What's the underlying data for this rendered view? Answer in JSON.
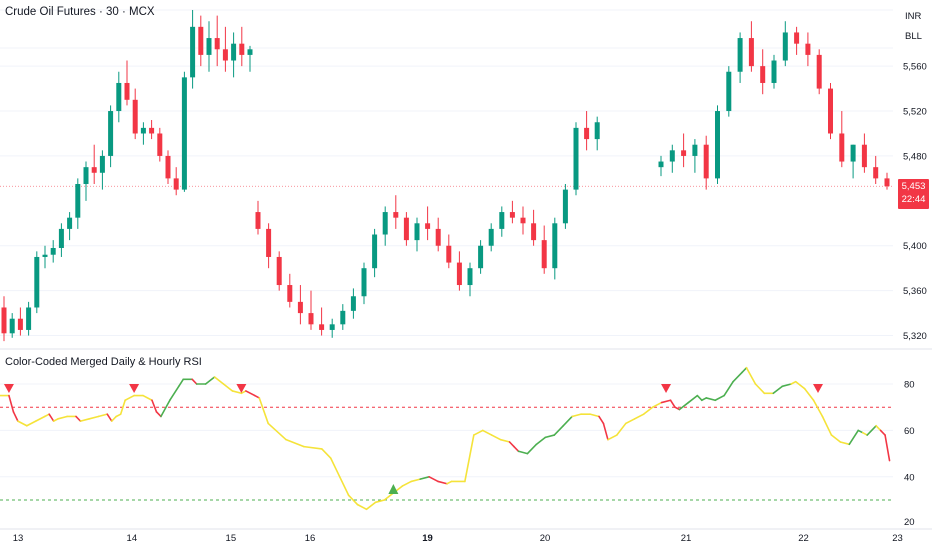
{
  "header": {
    "title": "Crude Oil Futures · 30 · MCX",
    "currency": "INR",
    "unit": "BLL"
  },
  "last_price": {
    "value": "5,453",
    "countdown": "22:44"
  },
  "indicator": {
    "title": "Color-Coded Merged Daily & Hourly RSI"
  },
  "colors": {
    "up": "#089981",
    "down": "#f23645",
    "rsi_neutral": "#f5e33a",
    "rsi_up": "#4caf50",
    "rsi_down": "#f23645",
    "overbought_line": "#f23645",
    "oversold_line": "#4caf50"
  },
  "chart_data": [
    {
      "type": "candlestick",
      "y_axis_ticks": [
        "5,320",
        "5,360",
        "5,400",
        "5,480",
        "5,520",
        "5,560"
      ],
      "ylim": [
        5300,
        5610
      ],
      "x_tick_labels": [
        {
          "label": "13",
          "x": 0.5
        },
        {
          "label": "14",
          "x": 12
        },
        {
          "label": "15",
          "x": 22
        },
        {
          "label": "16",
          "x": 26
        },
        {
          "label": "19",
          "x": 36
        },
        {
          "label": "20",
          "x": 46
        },
        {
          "label": "21",
          "x": 58
        },
        {
          "label": "22",
          "x": 68
        },
        {
          "label": "23",
          "x": 76
        }
      ],
      "last_price": 5453,
      "ohlc": [
        [
          5345,
          5355,
          5315,
          5322
        ],
        [
          5322,
          5340,
          5318,
          5335
        ],
        [
          5335,
          5345,
          5320,
          5325
        ],
        [
          5325,
          5350,
          5320,
          5345
        ],
        [
          5345,
          5395,
          5340,
          5390
        ],
        [
          5390,
          5400,
          5380,
          5392
        ],
        [
          5392,
          5405,
          5385,
          5398
        ],
        [
          5398,
          5420,
          5390,
          5415
        ],
        [
          5415,
          5430,
          5405,
          5425
        ],
        [
          5425,
          5460,
          5415,
          5455
        ],
        [
          5455,
          5475,
          5440,
          5470
        ],
        [
          5470,
          5490,
          5455,
          5465
        ],
        [
          5465,
          5485,
          5450,
          5480
        ],
        [
          5480,
          5525,
          5470,
          5520
        ],
        [
          5520,
          5555,
          5510,
          5545
        ],
        [
          5545,
          5565,
          5525,
          5530
        ],
        [
          5530,
          5540,
          5495,
          5500
        ],
        [
          5500,
          5510,
          5490,
          5505
        ],
        [
          5505,
          5512,
          5495,
          5500
        ],
        [
          5500,
          5505,
          5475,
          5480
        ],
        [
          5480,
          5485,
          5455,
          5460
        ],
        [
          5460,
          5470,
          5445,
          5450
        ],
        [
          5450,
          5555,
          5448,
          5550
        ],
        [
          5550,
          5610,
          5540,
          5595
        ],
        [
          5595,
          5605,
          5560,
          5570
        ],
        [
          5570,
          5600,
          5555,
          5585
        ],
        [
          5585,
          5605,
          5560,
          5575
        ],
        [
          5575,
          5595,
          5555,
          5565
        ],
        [
          5565,
          5590,
          5550,
          5580
        ],
        [
          5580,
          5595,
          5560,
          5570
        ],
        [
          5570,
          5578,
          5555,
          5575
        ],
        [
          5430,
          5440,
          5410,
          5415
        ],
        [
          5415,
          5420,
          5380,
          5390
        ],
        [
          5390,
          5395,
          5360,
          5365
        ],
        [
          5365,
          5375,
          5345,
          5350
        ],
        [
          5350,
          5365,
          5330,
          5340
        ],
        [
          5340,
          5360,
          5325,
          5330
        ],
        [
          5330,
          5345,
          5320,
          5325
        ],
        [
          5325,
          5335,
          5318,
          5330
        ],
        [
          5330,
          5348,
          5325,
          5342
        ],
        [
          5342,
          5362,
          5335,
          5355
        ],
        [
          5355,
          5385,
          5348,
          5380
        ],
        [
          5380,
          5415,
          5372,
          5410
        ],
        [
          5410,
          5435,
          5400,
          5430
        ],
        [
          5430,
          5445,
          5415,
          5425
        ],
        [
          5425,
          5430,
          5400,
          5405
        ],
        [
          5405,
          5425,
          5395,
          5420
        ],
        [
          5420,
          5435,
          5405,
          5415
        ],
        [
          5415,
          5425,
          5395,
          5400
        ],
        [
          5400,
          5410,
          5380,
          5385
        ],
        [
          5385,
          5395,
          5360,
          5365
        ],
        [
          5365,
          5385,
          5355,
          5380
        ],
        [
          5380,
          5405,
          5375,
          5400
        ],
        [
          5400,
          5420,
          5395,
          5415
        ],
        [
          5415,
          5435,
          5408,
          5430
        ],
        [
          5430,
          5440,
          5420,
          5425
        ],
        [
          5425,
          5435,
          5410,
          5420
        ],
        [
          5420,
          5432,
          5400,
          5405
        ],
        [
          5405,
          5418,
          5375,
          5380
        ],
        [
          5380,
          5425,
          5370,
          5420
        ],
        [
          5420,
          5455,
          5415,
          5450
        ],
        [
          5450,
          5510,
          5445,
          5505
        ],
        [
          5505,
          5520,
          5485,
          5495
        ],
        [
          5495,
          5515,
          5485,
          5510
        ],
        [
          5470,
          5480,
          5462,
          5475
        ],
        [
          5475,
          5490,
          5465,
          5485
        ],
        [
          5485,
          5500,
          5470,
          5480
        ],
        [
          5480,
          5495,
          5465,
          5490
        ],
        [
          5490,
          5498,
          5450,
          5460
        ],
        [
          5460,
          5525,
          5455,
          5520
        ],
        [
          5520,
          5560,
          5515,
          5555
        ],
        [
          5555,
          5590,
          5545,
          5585
        ],
        [
          5585,
          5600,
          5555,
          5560
        ],
        [
          5560,
          5575,
          5535,
          5545
        ],
        [
          5545,
          5570,
          5540,
          5565
        ],
        [
          5565,
          5600,
          5560,
          5590
        ],
        [
          5590,
          5595,
          5570,
          5580
        ],
        [
          5580,
          5590,
          5560,
          5570
        ],
        [
          5570,
          5575,
          5535,
          5540
        ],
        [
          5540,
          5545,
          5495,
          5500
        ],
        [
          5500,
          5520,
          5470,
          5475
        ],
        [
          5475,
          5490,
          5460,
          5490
        ],
        [
          5490,
          5500,
          5465,
          5470
        ],
        [
          5470,
          5480,
          5455,
          5460
        ],
        [
          5460,
          5465,
          5450,
          5453
        ]
      ]
    },
    {
      "type": "line",
      "name": "",
      "y_axis_ticks": [
        "40",
        "60",
        "80"
      ],
      "ylim": [
        20,
        90
      ],
      "overbought": 70,
      "oversold": 30,
      "series": [
        [
          0,
          75,
          "n"
        ],
        [
          2,
          75,
          "n"
        ],
        [
          3,
          68,
          "d"
        ],
        [
          4,
          64,
          "d"
        ],
        [
          6,
          62,
          "n"
        ],
        [
          8,
          64,
          "n"
        ],
        [
          10,
          66,
          "n"
        ],
        [
          11,
          67,
          "n"
        ],
        [
          12,
          64,
          "d"
        ],
        [
          13,
          65,
          "n"
        ],
        [
          15,
          66,
          "n"
        ],
        [
          17,
          66,
          "n"
        ],
        [
          18,
          64,
          "d"
        ],
        [
          20,
          65,
          "n"
        ],
        [
          22,
          66,
          "n"
        ],
        [
          24,
          67,
          "n"
        ],
        [
          25,
          64,
          "d"
        ],
        [
          26,
          66,
          "n"
        ],
        [
          27,
          67,
          "n"
        ],
        [
          28,
          73,
          "n"
        ],
        [
          30,
          75,
          "n"
        ],
        [
          32,
          75,
          "n"
        ],
        [
          34,
          73,
          "n"
        ],
        [
          35,
          68,
          "d"
        ],
        [
          36,
          66,
          "d"
        ],
        [
          38,
          73,
          "u"
        ],
        [
          40,
          79,
          "u"
        ],
        [
          41,
          82,
          "u"
        ],
        [
          43,
          82,
          "u"
        ],
        [
          44,
          80,
          "d"
        ],
        [
          46,
          80,
          "u"
        ],
        [
          48,
          83,
          "u"
        ],
        [
          50,
          80,
          "n"
        ],
        [
          52,
          77,
          "n"
        ],
        [
          54,
          76,
          "n"
        ],
        [
          55,
          77,
          "n"
        ],
        [
          57,
          75,
          "d"
        ],
        [
          58,
          74,
          "d"
        ],
        [
          60,
          63,
          "n"
        ],
        [
          64,
          56,
          "n"
        ],
        [
          68,
          53,
          "n"
        ],
        [
          72,
          52,
          "n"
        ],
        [
          74,
          48,
          "n"
        ],
        [
          76,
          40,
          "n"
        ],
        [
          78,
          32,
          "n"
        ],
        [
          80,
          28,
          "n"
        ],
        [
          82,
          26,
          "n"
        ],
        [
          84,
          29,
          "n"
        ],
        [
          86,
          30,
          "n"
        ],
        [
          88,
          33,
          "n"
        ],
        [
          90,
          36,
          "n"
        ],
        [
          92,
          38,
          "n"
        ],
        [
          94,
          39,
          "n"
        ],
        [
          96,
          40,
          "u"
        ],
        [
          98,
          38,
          "d"
        ],
        [
          100,
          37,
          "d"
        ],
        [
          101,
          38,
          "n"
        ],
        [
          104,
          38,
          "n"
        ],
        [
          106,
          58,
          "n"
        ],
        [
          108,
          60,
          "n"
        ],
        [
          110,
          58,
          "n"
        ],
        [
          112,
          56,
          "n"
        ],
        [
          114,
          55,
          "n"
        ],
        [
          115,
          53,
          "d"
        ],
        [
          116,
          51,
          "d"
        ],
        [
          118,
          50,
          "u"
        ],
        [
          120,
          54,
          "u"
        ],
        [
          122,
          57,
          "u"
        ],
        [
          124,
          58,
          "u"
        ],
        [
          126,
          62,
          "u"
        ],
        [
          128,
          66,
          "u"
        ],
        [
          130,
          67,
          "n"
        ],
        [
          132,
          67,
          "n"
        ],
        [
          134,
          66,
          "n"
        ],
        [
          135,
          63,
          "d"
        ],
        [
          136,
          56,
          "d"
        ],
        [
          138,
          58,
          "n"
        ],
        [
          140,
          63,
          "n"
        ],
        [
          142,
          65,
          "n"
        ],
        [
          144,
          67,
          "n"
        ],
        [
          146,
          70,
          "n"
        ],
        [
          148,
          72,
          "n"
        ],
        [
          150,
          73,
          "d"
        ],
        [
          151,
          70,
          "d"
        ],
        [
          152,
          69,
          "d"
        ],
        [
          154,
          72,
          "u"
        ],
        [
          156,
          75,
          "u"
        ],
        [
          157,
          73,
          "u"
        ],
        [
          158,
          74,
          "u"
        ],
        [
          160,
          73,
          "u"
        ],
        [
          162,
          75,
          "u"
        ],
        [
          164,
          81,
          "u"
        ],
        [
          166,
          85,
          "u"
        ],
        [
          167,
          87,
          "u"
        ],
        [
          169,
          80,
          "n"
        ],
        [
          171,
          76,
          "n"
        ],
        [
          173,
          76,
          "n"
        ],
        [
          175,
          79,
          "u"
        ],
        [
          177,
          80,
          "u"
        ],
        [
          178,
          81,
          "n"
        ],
        [
          180,
          78,
          "n"
        ],
        [
          182,
          73,
          "n"
        ],
        [
          184,
          66,
          "n"
        ],
        [
          186,
          58,
          "n"
        ],
        [
          188,
          55,
          "n"
        ],
        [
          190,
          54,
          "n"
        ],
        [
          192,
          60,
          "u"
        ],
        [
          193,
          59,
          "u"
        ],
        [
          194,
          58,
          "n"
        ],
        [
          196,
          62,
          "u"
        ],
        [
          197,
          60,
          "n"
        ],
        [
          198,
          58,
          "d"
        ],
        [
          199,
          47,
          "d"
        ]
      ],
      "signals": [
        {
          "x": 2,
          "type": "sell"
        },
        {
          "x": 30,
          "type": "sell"
        },
        {
          "x": 54,
          "type": "sell"
        },
        {
          "x": 88,
          "type": "buy"
        },
        {
          "x": 149,
          "type": "sell"
        },
        {
          "x": 183,
          "type": "sell"
        }
      ]
    }
  ]
}
